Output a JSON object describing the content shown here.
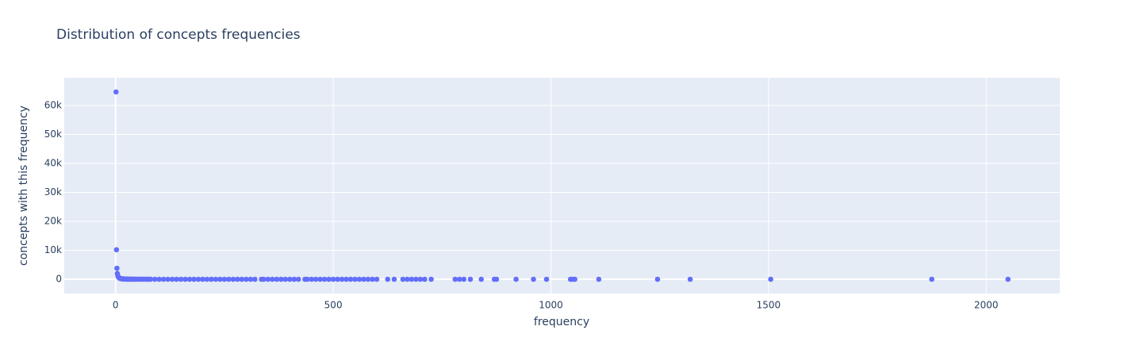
{
  "chart_data": {
    "type": "scatter",
    "title": "Distribution of concepts frequencies",
    "x_label": "frequency",
    "y_label": "concepts with this frequency",
    "color": "#636efa",
    "grid": true,
    "xlim": [
      -118,
      2169
    ],
    "ylim": [
      -4930,
      69600
    ],
    "xticks": [
      0,
      500,
      1000,
      1500,
      2000
    ],
    "yticks": [
      0,
      {
        "value": 10000,
        "label": "10k"
      },
      {
        "value": 20000,
        "label": "20k"
      },
      {
        "value": 30000,
        "label": "30k"
      },
      {
        "value": 40000,
        "label": "40k"
      },
      {
        "value": 50000,
        "label": "50k"
      },
      {
        "value": 60000,
        "label": "60k"
      }
    ],
    "x": [
      1,
      2,
      3,
      4,
      5,
      6,
      7,
      8,
      9,
      10,
      11,
      12,
      13,
      14,
      15,
      16,
      17,
      18,
      19,
      20,
      21,
      22,
      23,
      24,
      25,
      26,
      27,
      28,
      29,
      30,
      32,
      35,
      38,
      40,
      43,
      46,
      50,
      55,
      60,
      65,
      70,
      75,
      80,
      90,
      100,
      110,
      120,
      130,
      140,
      150,
      160,
      170,
      180,
      190,
      200,
      210,
      220,
      230,
      240,
      250,
      260,
      270,
      280,
      290,
      300,
      310,
      320,
      335,
      340,
      350,
      360,
      370,
      380,
      390,
      400,
      410,
      420,
      435,
      440,
      450,
      460,
      470,
      480,
      490,
      500,
      510,
      520,
      530,
      540,
      550,
      560,
      570,
      580,
      590,
      600,
      625,
      640,
      660,
      670,
      680,
      690,
      700,
      710,
      725,
      780,
      790,
      800,
      815,
      840,
      870,
      875,
      920,
      960,
      990,
      1045,
      1050,
      1055,
      1110,
      1245,
      1320,
      1505,
      1875,
      2050
    ],
    "values": [
      64700,
      10200,
      3800,
      2000,
      1250,
      880,
      650,
      500,
      400,
      320,
      265,
      225,
      190,
      165,
      145,
      128,
      114,
      102,
      92,
      83,
      76,
      69,
      63,
      58,
      54,
      50,
      46,
      43,
      40,
      38,
      33,
      28,
      24,
      22,
      19,
      17,
      15,
      12,
      10,
      9,
      8,
      7,
      6,
      5,
      4,
      4,
      3,
      3,
      3,
      2,
      2,
      2,
      2,
      2,
      2,
      2,
      2,
      2,
      2,
      2,
      1,
      1,
      1,
      1,
      1,
      1,
      1,
      1,
      1,
      1,
      1,
      1,
      1,
      1,
      1,
      1,
      1,
      1,
      1,
      1,
      1,
      1,
      1,
      1,
      1,
      1,
      1,
      1,
      1,
      1,
      1,
      1,
      1,
      1,
      1,
      1,
      1,
      1,
      1,
      1,
      1,
      1,
      1,
      1,
      1,
      1,
      1,
      1,
      1,
      1,
      1,
      1,
      1,
      1,
      1,
      1,
      1,
      1,
      1,
      1,
      1,
      1,
      1
    ]
  }
}
